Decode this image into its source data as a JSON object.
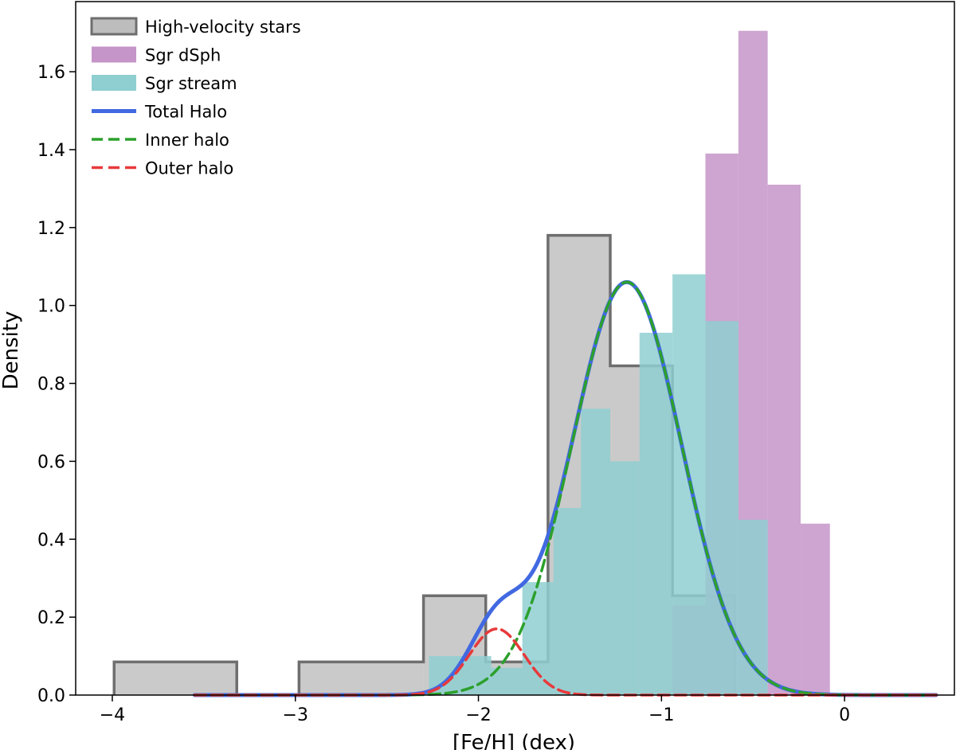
{
  "chart_data": {
    "type": "histogram",
    "title": "",
    "xlabel": "[Fe/H] (dex)",
    "ylabel": "Density",
    "xlim": [
      -4.2,
      0.6
    ],
    "ylim": [
      0.0,
      1.78
    ],
    "xticks": [
      -4,
      -3,
      -2,
      -1,
      0
    ],
    "xtick_labels": [
      "−4",
      "−3",
      "−2",
      "−1",
      "0"
    ],
    "yticks": [
      0.0,
      0.2,
      0.4,
      0.6,
      0.8,
      1.0,
      1.2,
      1.4,
      1.6
    ],
    "ytick_labels": [
      "0.0",
      "0.2",
      "0.4",
      "0.6",
      "0.8",
      "1.0",
      "1.2",
      "1.4",
      "1.6"
    ],
    "grid": false,
    "legend_position": "top-left",
    "histograms": [
      {
        "name": "High-velocity stars",
        "style": "stepfilled-outline",
        "fill": "#bdbdbd",
        "edge": "#6e6e6e",
        "edges": [
          -3.99,
          -3.32,
          -2.98,
          -2.3,
          -1.96,
          -1.62,
          -1.28,
          -0.94,
          -0.6
        ],
        "values": [
          0.085,
          0.0,
          0.085,
          0.255,
          0.085,
          1.18,
          0.845,
          0.255
        ]
      },
      {
        "name": "Sgr dSph",
        "style": "filled",
        "fill": "#c594c8",
        "edges": [
          -0.94,
          -0.76,
          -0.58,
          -0.42,
          -0.24,
          -0.08
        ],
        "values": [
          0.23,
          1.39,
          1.705,
          1.31,
          0.44
        ]
      },
      {
        "name": "Sgr stream",
        "style": "filled",
        "fill": "#8fcfd1",
        "edges": [
          -2.27,
          -2.1,
          -1.93,
          -1.76,
          -1.59,
          -1.44,
          -1.28,
          -1.12,
          -0.94,
          -0.76,
          -0.58,
          -0.42
        ],
        "values": [
          0.1,
          0.1,
          0.07,
          0.29,
          0.48,
          0.735,
          0.6,
          0.93,
          1.08,
          0.96,
          0.45
        ]
      }
    ],
    "series": [
      {
        "name": "Total Halo",
        "style": "solid",
        "color": "#4169e1",
        "mu1": -1.19,
        "sigma1": 0.3,
        "amp1": 1.06,
        "mu2": -1.9,
        "sigma2": 0.15,
        "amp2": 0.17
      },
      {
        "name": "Inner halo",
        "style": "dashed",
        "color": "#2ca02c",
        "mu": -1.19,
        "sigma": 0.3,
        "amp": 1.06
      },
      {
        "name": "Outer halo",
        "style": "dashed",
        "color": "#e8393b",
        "mu": -1.9,
        "sigma": 0.15,
        "amp": 0.17
      }
    ],
    "legend": [
      {
        "label": "High-velocity stars",
        "kind": "patch",
        "fill": "#bdbdbd",
        "edge": "#6e6e6e"
      },
      {
        "label": "Sgr dSph",
        "kind": "patch",
        "fill": "#c594c8",
        "edge": "none"
      },
      {
        "label": "Sgr stream",
        "kind": "patch",
        "fill": "#8fcfd1",
        "edge": "none"
      },
      {
        "label": "Total Halo",
        "kind": "line",
        "color": "#4169e1",
        "dash": ""
      },
      {
        "label": "Inner halo",
        "kind": "line",
        "color": "#2ca02c",
        "dash": "14 7"
      },
      {
        "label": "Outer halo",
        "kind": "line",
        "color": "#e8393b",
        "dash": "14 7"
      }
    ]
  }
}
